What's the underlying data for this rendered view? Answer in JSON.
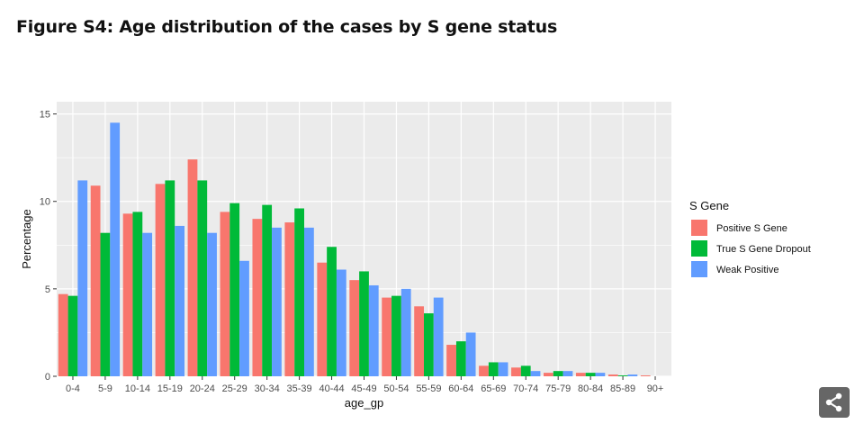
{
  "figure_title": "Figure S4: Age distribution of the cases by S gene status",
  "share_icon": "share-icon",
  "colors": {
    "panel_bg": "#EBEBEB",
    "grid": "#FFFFFF",
    "positive": "#F8766D",
    "dropout": "#00BA38",
    "weak": "#619CFF"
  },
  "chart_data": {
    "type": "bar",
    "title": "",
    "xlabel": "age_gp",
    "ylabel": "Percentage",
    "ylim": [
      0,
      15.7
    ],
    "yticks": [
      0,
      5,
      10,
      15
    ],
    "grid": true,
    "legend_title": "S Gene",
    "legend_position": "right",
    "categories": [
      "0-4",
      "5-9",
      "10-14",
      "15-19",
      "20-24",
      "25-29",
      "30-34",
      "35-39",
      "40-44",
      "45-49",
      "50-54",
      "55-59",
      "60-64",
      "65-69",
      "70-74",
      "75-79",
      "80-84",
      "85-89",
      "90+"
    ],
    "series": [
      {
        "name": "Positive S Gene",
        "color": "#F8766D",
        "values": [
          4.7,
          10.9,
          9.3,
          11.0,
          12.4,
          9.4,
          9.0,
          8.8,
          6.5,
          5.5,
          4.5,
          4.0,
          1.8,
          0.6,
          0.5,
          0.2,
          0.2,
          0.1,
          0.05
        ]
      },
      {
        "name": "True S Gene Dropout",
        "color": "#00BA38",
        "values": [
          4.6,
          8.2,
          9.4,
          11.2,
          11.2,
          9.9,
          9.8,
          9.6,
          7.4,
          6.0,
          4.6,
          3.6,
          2.0,
          0.8,
          0.6,
          0.3,
          0.2,
          0.05,
          0.0
        ]
      },
      {
        "name": "Weak Positive",
        "color": "#619CFF",
        "values": [
          11.2,
          14.5,
          8.2,
          8.6,
          8.2,
          6.6,
          8.5,
          8.5,
          6.1,
          5.2,
          5.0,
          4.5,
          2.5,
          0.8,
          0.3,
          0.3,
          0.2,
          0.1,
          0.0
        ]
      }
    ]
  }
}
